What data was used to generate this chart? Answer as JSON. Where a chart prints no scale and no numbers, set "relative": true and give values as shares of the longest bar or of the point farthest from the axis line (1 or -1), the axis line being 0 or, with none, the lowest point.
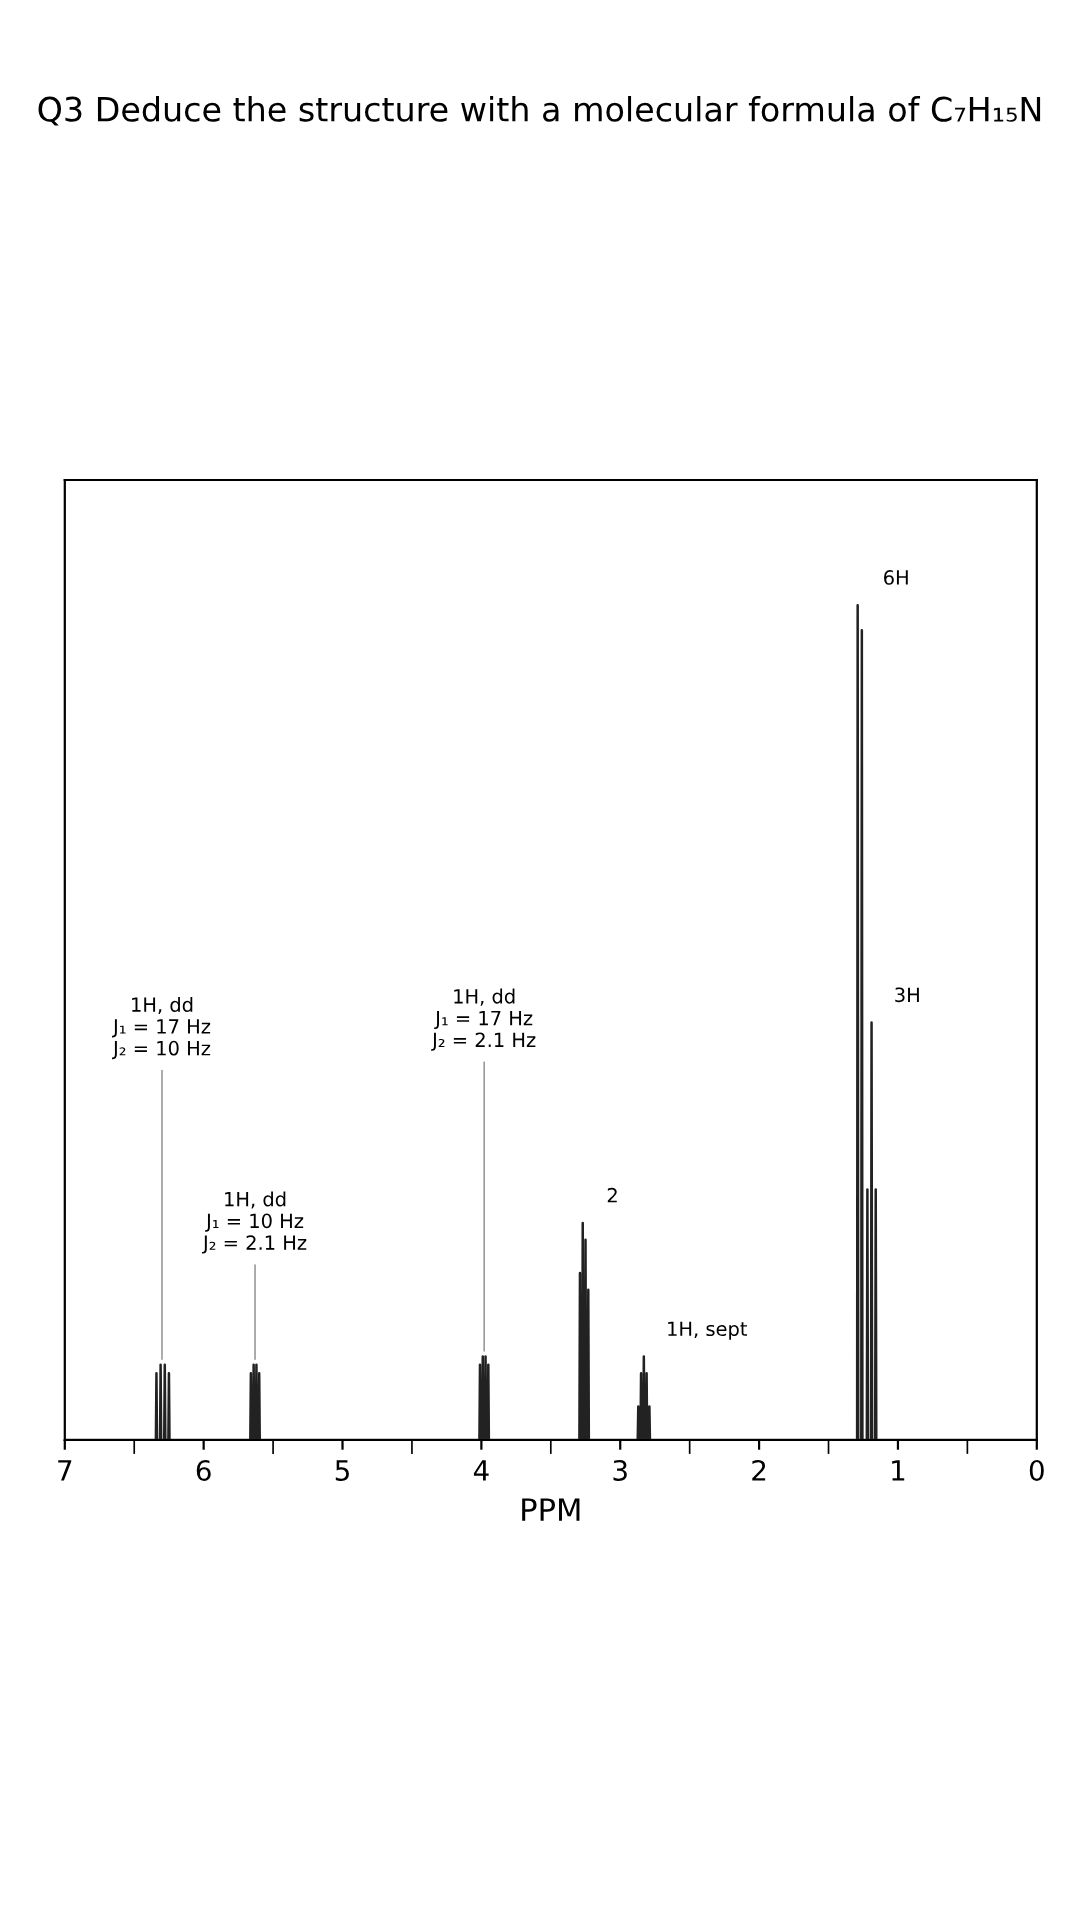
{
  "chart_data": {
    "type": "line",
    "title": "Q3 Deduce the structure with a molecular formula of C₇H₁₅N",
    "xlabel": "PPM",
    "relative": true,
    "color": "#222222",
    "xlim": [
      7,
      0
    ],
    "xticks": [
      0,
      {
        "value": 0.5,
        "label": null
      },
      1,
      {
        "value": 1.5,
        "label": null
      },
      2,
      {
        "value": 2.5,
        "label": null
      },
      3,
      {
        "value": 3.5,
        "label": null
      },
      4,
      {
        "value": 4.5,
        "label": null
      },
      5,
      {
        "value": 5.5,
        "label": null
      },
      6,
      {
        "value": 6.5,
        "label": null
      },
      7
    ],
    "x": [
      7,
      6.344,
      6.34,
      6.336,
      6.314,
      6.31,
      6.306,
      6.284,
      6.28,
      6.276,
      6.254,
      6.25,
      6.246,
      5.664,
      5.66,
      5.656,
      5.644,
      5.64,
      5.636,
      5.624,
      5.62,
      5.616,
      5.604,
      5.6,
      5.596,
      4.014,
      4.01,
      4.006,
      3.994,
      3.99,
      3.986,
      3.974,
      3.97,
      3.966,
      3.954,
      3.95,
      3.946,
      3.294,
      3.29,
      3.286,
      3.274,
      3.27,
      3.266,
      3.254,
      3.25,
      3.246,
      3.234,
      3.23,
      3.226,
      2.874,
      2.87,
      2.866,
      2.854,
      2.85,
      2.846,
      2.834,
      2.83,
      2.826,
      2.814,
      2.81,
      2.806,
      2.794,
      2.79,
      2.786,
      1.294,
      1.29,
      1.286,
      1.264,
      1.26,
      1.256,
      1.224,
      1.22,
      1.216,
      1.194,
      1.19,
      1.186,
      1.164,
      1.16,
      1.156,
      0
    ],
    "values": [
      0,
      0,
      0.08,
      0,
      0,
      0.09,
      0,
      0,
      0.09,
      0,
      0,
      0.08,
      0,
      0,
      0.08,
      0,
      0,
      0.09,
      0,
      0,
      0.09,
      0,
      0,
      0.08,
      0,
      0,
      0.09,
      0,
      0,
      0.1,
      0,
      0,
      0.1,
      0,
      0,
      0.09,
      0,
      0,
      0.2,
      0,
      0,
      0.26,
      0,
      0,
      0.24,
      0,
      0,
      0.18,
      0,
      0,
      0.04,
      0,
      0,
      0.08,
      0,
      0,
      0.1,
      0,
      0,
      0.08,
      0,
      0,
      0.04,
      0,
      0,
      1.0,
      0,
      0,
      0.97,
      0,
      0,
      0.3,
      0,
      0,
      0.5,
      0,
      0,
      0.3,
      0,
      0
    ],
    "annotations": [
      {
        "text": "1H, dd\nJ₁ = 17 Hz\nJ₂ = 10 Hz",
        "x": 6.3,
        "y": 0.09
      },
      {
        "text": "1H, dd\nJ₁ = 10 Hz\nJ₂ = 2.1 Hz",
        "x": 5.63,
        "y": 0.09
      },
      {
        "text": "1H, dd\nJ₁ = 17 Hz\nJ₂ = 2.1 Hz",
        "x": 3.98,
        "y": 0.1
      },
      {
        "text": "2",
        "x": 3.26,
        "y": 0.26
      },
      {
        "text": "1H, sept",
        "x": 2.83,
        "y": 0.1
      },
      {
        "text": "6H",
        "x": 1.27,
        "y": 1.0
      },
      {
        "text": "3H",
        "x": 1.19,
        "y": 0.5
      }
    ]
  }
}
